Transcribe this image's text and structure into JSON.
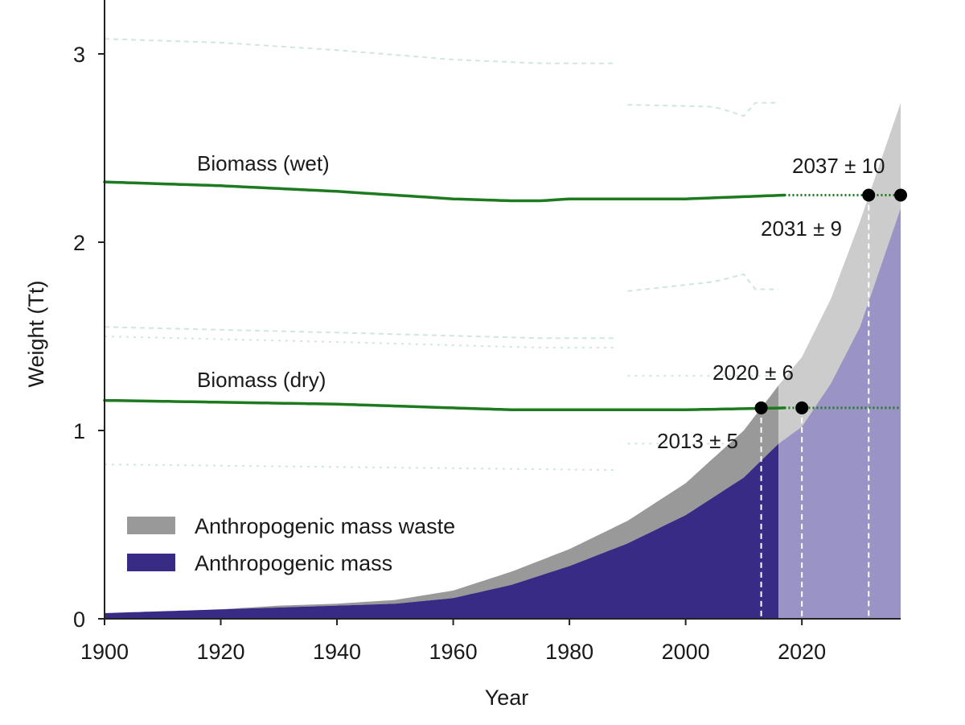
{
  "chart_data": {
    "type": "area",
    "xlabel": "Year",
    "ylabel": "Weight (Tt)",
    "xlim": [
      1900,
      2037
    ],
    "ylim": [
      0,
      3.3
    ],
    "x_ticks": [
      "1900",
      "1920",
      "1940",
      "1960",
      "1980",
      "2000",
      "2020"
    ],
    "y_ticks": [
      "0",
      "1",
      "2",
      "3"
    ],
    "grid": false,
    "legend_position": "bottom-left",
    "legend": [
      {
        "label": "Anthropogenic mass waste",
        "color": "#999999"
      },
      {
        "label": "Anthropogenic mass",
        "color": "#372b85"
      }
    ],
    "colors": {
      "anthropogenic_mass": "#372b85",
      "anthropogenic_mass_projected": "#9a94c6",
      "waste": "#999999",
      "waste_projected": "#cccccc",
      "biomass": "#1e7a1e",
      "uncertainty_band": "#cfe7dc",
      "marker": "#000000"
    },
    "series": [
      {
        "name": "Anthropogenic mass",
        "x": [
          1900,
          1910,
          1920,
          1930,
          1940,
          1950,
          1960,
          1970,
          1980,
          1990,
          2000,
          2010,
          2016,
          2020,
          2025,
          2030,
          2037
        ],
        "values": [
          0.03,
          0.04,
          0.05,
          0.06,
          0.07,
          0.08,
          0.11,
          0.18,
          0.28,
          0.4,
          0.55,
          0.75,
          0.93,
          1.02,
          1.25,
          1.55,
          2.18
        ]
      },
      {
        "name": "Anthropogenic mass waste",
        "x": [
          1900,
          1910,
          1920,
          1930,
          1940,
          1950,
          1960,
          1970,
          1980,
          1990,
          2000,
          2010,
          2016,
          2020,
          2025,
          2030,
          2037
        ],
        "values": [
          0.03,
          0.04,
          0.05,
          0.07,
          0.08,
          0.1,
          0.15,
          0.25,
          0.37,
          0.52,
          0.72,
          1.0,
          1.24,
          1.39,
          1.7,
          2.11,
          2.74
        ]
      },
      {
        "name": "Biomass (wet)",
        "x": [
          1900,
          1920,
          1940,
          1960,
          1970,
          1975,
          1980,
          2000,
          2017
        ],
        "values": [
          2.32,
          2.3,
          2.27,
          2.23,
          2.22,
          2.22,
          2.23,
          2.23,
          2.25
        ]
      },
      {
        "name": "Biomass (dry)",
        "x": [
          1900,
          1920,
          1940,
          1960,
          1970,
          1975,
          1980,
          2000,
          2017
        ],
        "values": [
          1.16,
          1.15,
          1.14,
          1.12,
          1.11,
          1.11,
          1.11,
          1.11,
          1.12
        ]
      }
    ],
    "annotations": [
      {
        "text": "2013 ± 5",
        "x": 2013,
        "y": 1.12
      },
      {
        "text": "2020 ± 6",
        "x": 2020,
        "y": 1.12
      },
      {
        "text": "2031 ± 9",
        "x": 2031.5,
        "y": 2.25
      },
      {
        "text": "2037 ± 10",
        "x": 2037,
        "y": 2.25
      }
    ]
  }
}
